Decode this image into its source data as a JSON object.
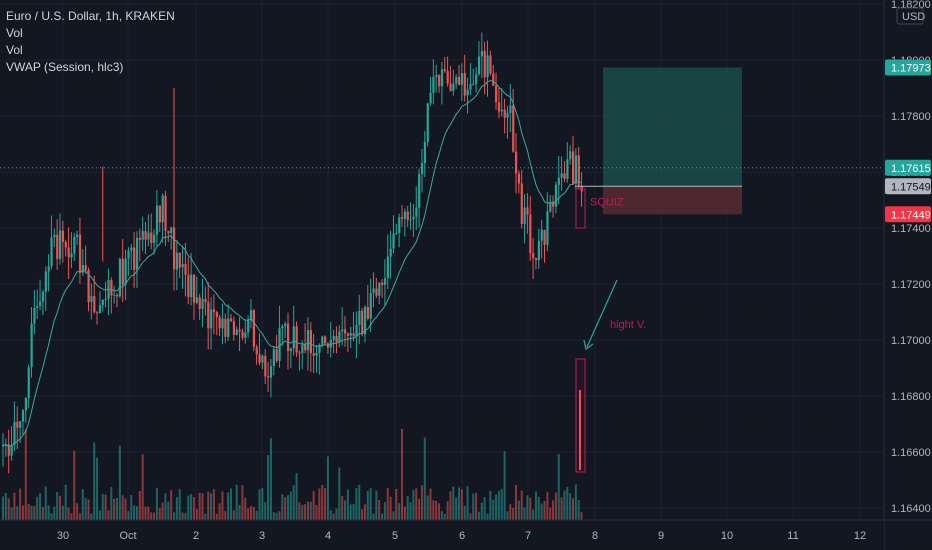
{
  "legend": {
    "symbol": "Euro / U.S. Dollar, 1h, KRAKEN",
    "vol1": "Vol",
    "vol2": "Vol",
    "vwap": "VWAP (Session, hlc3)"
  },
  "currency": "USD",
  "colors": {
    "background": "#131722",
    "up": "#26a69a",
    "down": "#ef5350",
    "vwap": "#3aa9a0",
    "grid": "#1e222d",
    "profit_zone": "#1b4c4a",
    "loss_zone": "#5a2a30",
    "annotation": "#c2185b",
    "arrow": "#2a9d9f"
  },
  "chart_data": {
    "type": "candlestick",
    "y_range": [
      1.1634,
      1.182
    ],
    "y_ticks": [
      "1.18200",
      "1.18000",
      "1.17800",
      "1.17600",
      "1.17400",
      "1.17200",
      "1.17000",
      "1.16800",
      "1.16600",
      "1.16400"
    ],
    "x_ticks": [
      "30",
      "Oct",
      "2",
      "3",
      "4",
      "5",
      "6",
      "7",
      "8",
      "9",
      "10",
      "11",
      "12"
    ],
    "price_levels": [
      {
        "label": "1.17973",
        "value": 1.17973,
        "bg": "#26a69a",
        "fg": "#ffffff"
      },
      {
        "label": "1.17615",
        "value": 1.17615,
        "bg": "#26a69a",
        "fg": "#ffffff"
      },
      {
        "label": "1.17549",
        "value": 1.17549,
        "bg": "#b2b5be",
        "fg": "#131722"
      },
      {
        "label": "1.17449",
        "value": 1.17449,
        "bg": "#f23645",
        "fg": "#ffffff"
      }
    ],
    "current_price": 1.17615,
    "position": {
      "entry": 1.17549,
      "target": 1.17973,
      "stop": 1.17449
    },
    "path_keypoints": [
      [
        0,
        1.1662
      ],
      [
        4,
        1.1667
      ],
      [
        8,
        1.1685
      ],
      [
        12,
        1.1715
      ],
      [
        18,
        1.1735
      ],
      [
        26,
        1.1732
      ],
      [
        32,
        1.1712
      ],
      [
        38,
        1.1718
      ],
      [
        44,
        1.1728
      ],
      [
        50,
        1.1735
      ],
      [
        56,
        1.1748
      ],
      [
        60,
        1.173
      ],
      [
        64,
        1.1722
      ],
      [
        70,
        1.171
      ],
      [
        78,
        1.1702
      ],
      [
        86,
        1.1708
      ],
      [
        92,
        1.169
      ],
      [
        98,
        1.1702
      ],
      [
        106,
        1.1698
      ],
      [
        114,
        1.1698
      ],
      [
        120,
        1.1705
      ],
      [
        126,
        1.1708
      ],
      [
        132,
        1.172
      ],
      [
        138,
        1.174
      ],
      [
        144,
        1.1745
      ],
      [
        150,
        1.179
      ],
      [
        156,
        1.1793
      ],
      [
        162,
        1.179
      ],
      [
        168,
        1.18
      ],
      [
        174,
        1.1787
      ],
      [
        178,
        1.178
      ],
      [
        182,
        1.1745
      ],
      [
        186,
        1.1733
      ],
      [
        190,
        1.1738
      ],
      [
        194,
        1.1757
      ],
      [
        198,
        1.1763
      ],
      [
        203,
        1.1759
      ]
    ],
    "annotations": {
      "squeeze_label": "SQUIZ",
      "volume_label": "hight V."
    }
  }
}
